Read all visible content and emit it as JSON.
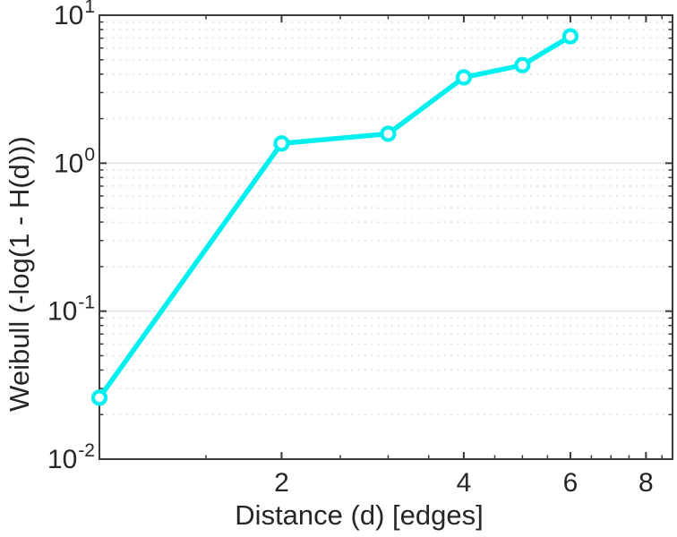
{
  "figure": {
    "background": "#FFFFFF"
  },
  "chart_data": {
    "type": "line",
    "title": "",
    "xlabel": "Distance (d) [edges]",
    "ylabel": "Weibull (-log(1 - H(d)))",
    "x_scale": "log",
    "y_scale": "log",
    "xlim": [
      1,
      8.85
    ],
    "ylim": [
      0.01,
      10
    ],
    "x": [
      1,
      2,
      3,
      4,
      5,
      6
    ],
    "y": [
      0.026,
      1.36,
      1.58,
      3.8,
      4.6,
      7.2
    ],
    "x_major_ticks": [
      {
        "value": 2,
        "label": "2"
      },
      {
        "value": 4,
        "label": "4"
      },
      {
        "value": 6,
        "label": "6"
      },
      {
        "value": 8,
        "label": "8"
      }
    ],
    "x_minor_ticks": [
      1.5,
      2.5,
      3,
      3.5,
      4.5,
      5,
      5.5,
      6.5,
      7,
      7.5,
      8.5
    ],
    "y_major_ticks": [
      {
        "value": 0.01,
        "base": "10",
        "exponent": "-2"
      },
      {
        "value": 0.1,
        "base": "10",
        "exponent": "-1"
      },
      {
        "value": 1,
        "base": "10",
        "exponent": "0"
      },
      {
        "value": 10,
        "base": "10",
        "exponent": "1"
      }
    ],
    "y_minor_mantissas": [
      2,
      3,
      4,
      5,
      6,
      7,
      8,
      9
    ],
    "grid": {
      "y_major": "solid",
      "y_minor": "dotted",
      "x": "none"
    },
    "legend": "none",
    "style": {
      "line_color": "#00EFEF",
      "marker": "circle",
      "marker_face_color": "#FFFFFF",
      "axis_color": "#3A3A3A",
      "text_color": "#262626",
      "grid_major_color": "#E6E6E6",
      "grid_minor_color": "#E2E2E2"
    }
  }
}
